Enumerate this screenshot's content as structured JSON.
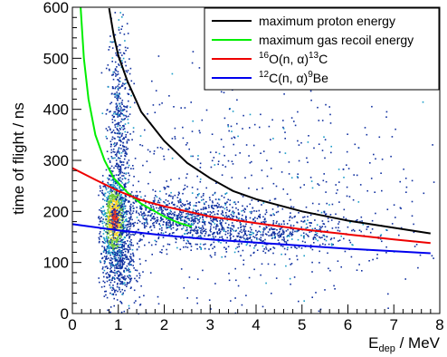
{
  "chart_data": {
    "type": "scatter",
    "title": "",
    "xlabel": {
      "main": "E",
      "sub": "dep",
      "unit": " / MeV"
    },
    "ylabel": "time of flight / ns",
    "xlim": [
      0,
      8
    ],
    "ylim": [
      0,
      600
    ],
    "x_ticks": [
      "0",
      "1",
      "2",
      "3",
      "4",
      "5",
      "6",
      "7",
      "8"
    ],
    "y_ticks": [
      "0",
      "100",
      "200",
      "300",
      "400",
      "500",
      "600"
    ],
    "grid": false,
    "legend_position": "top-right",
    "legend": [
      {
        "pre_sup": "",
        "text": "maximum proton energy",
        "color": "#000000"
      },
      {
        "pre_sup": "",
        "text": "maximum gas recoil energy",
        "color": "#00ee00"
      },
      {
        "pre_sup": "16",
        "text": "O(n, α)",
        "post_sup": "13",
        "tail": "C",
        "color": "#ee0000"
      },
      {
        "pre_sup": "12",
        "text": "C(n, α)",
        "post_sup": "9",
        "tail": "Be",
        "color": "#0000ee"
      }
    ],
    "curves": [
      {
        "name": "maximum proton energy",
        "color": "#000000",
        "points": [
          [
            0.8,
            598
          ],
          [
            0.9,
            545
          ],
          [
            1.0,
            505
          ],
          [
            1.2,
            455
          ],
          [
            1.5,
            395
          ],
          [
            2.0,
            338
          ],
          [
            2.5,
            295
          ],
          [
            3.0,
            265
          ],
          [
            3.5,
            240
          ],
          [
            4.0,
            224
          ],
          [
            5.0,
            200
          ],
          [
            6.0,
            182
          ],
          [
            7.0,
            168
          ],
          [
            7.8,
            157
          ]
        ]
      },
      {
        "name": "maximum gas recoil energy",
        "color": "#00ee00",
        "points": [
          [
            0.18,
            600
          ],
          [
            0.25,
            500
          ],
          [
            0.35,
            420
          ],
          [
            0.5,
            350
          ],
          [
            0.7,
            300
          ],
          [
            0.9,
            265
          ],
          [
            1.2,
            237
          ],
          [
            1.5,
            215
          ],
          [
            2.0,
            190
          ],
          [
            2.3,
            178
          ],
          [
            2.6,
            170
          ]
        ]
      },
      {
        "name": "16O(n,α)13C",
        "color": "#ee0000",
        "points": [
          [
            0.0,
            285
          ],
          [
            0.5,
            262
          ],
          [
            1.0,
            240
          ],
          [
            1.5,
            222
          ],
          [
            2.0,
            210
          ],
          [
            3.0,
            190
          ],
          [
            4.0,
            177
          ],
          [
            5.0,
            165
          ],
          [
            6.0,
            155
          ],
          [
            7.0,
            145
          ],
          [
            7.8,
            138
          ]
        ]
      },
      {
        "name": "12C(n,α)9Be",
        "color": "#0000ee",
        "points": [
          [
            0.0,
            175
          ],
          [
            1.0,
            163
          ],
          [
            2.0,
            153
          ],
          [
            3.0,
            145
          ],
          [
            4.0,
            139
          ],
          [
            5.0,
            133
          ],
          [
            6.0,
            127
          ],
          [
            7.0,
            122
          ],
          [
            7.8,
            118
          ]
        ]
      }
    ],
    "scatter": {
      "description_colors": [
        "#1030a0",
        "#1a9cc8",
        "#6dc83a",
        "#f0d020",
        "#e03020"
      ],
      "clusters": [
        {
          "x_mean": 0.9,
          "x_sd": 0.15,
          "y_mean": 185,
          "y_sd": 45,
          "n": 900,
          "hot": true
        },
        {
          "x_mean": 1.0,
          "x_sd": 0.12,
          "y_mean": 350,
          "y_sd": 110,
          "n": 500,
          "hot": false
        },
        {
          "x_mean": 2.2,
          "x_sd": 0.9,
          "y_mean": 195,
          "y_sd": 22,
          "n": 700,
          "hot": false
        },
        {
          "x_mean": 4.0,
          "x_sd": 1.2,
          "y_mean": 160,
          "y_sd": 20,
          "n": 600,
          "hot": false
        },
        {
          "x_mean": 1.0,
          "x_sd": 0.2,
          "y_mean": 90,
          "y_sd": 35,
          "n": 350,
          "hot": false
        },
        {
          "x_mean": 4.0,
          "x_sd": 2.3,
          "y_mean": 250,
          "y_sd": 140,
          "n": 700,
          "hot": false
        }
      ]
    }
  }
}
